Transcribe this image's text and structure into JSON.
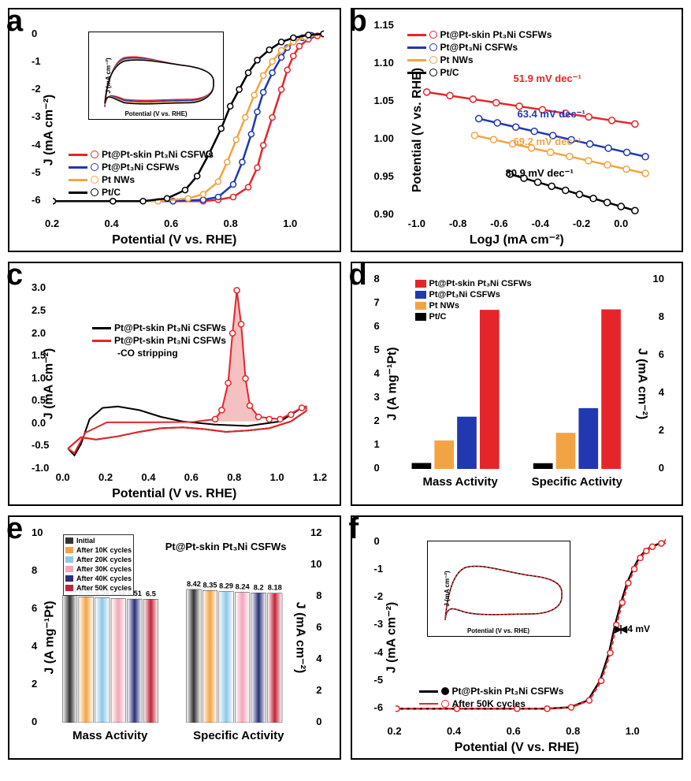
{
  "colors": {
    "red": "#e6252a",
    "blue": "#2138b0",
    "orange": "#f2a444",
    "black": "#000000",
    "pink_fill": "#f5c0c0",
    "lightblue": "#8fc7e8",
    "pink": "#f2a6b8",
    "darkblue": "#2a2f75",
    "darkred": "#c0243a",
    "gray": "#999999"
  },
  "samples": {
    "s1": "Pt@Pt-skin Pt₃Ni CSFWs",
    "s2": "Pt@Pt₃Ni CSFWs",
    "s3": "Pt NWs",
    "s4": "Pt/C"
  },
  "panelA": {
    "label": "a",
    "xlabel": "Potential (V vs. RHE)",
    "ylabel": "J (mA cm⁻²)",
    "xlim": [
      0.2,
      1.1
    ],
    "xticks": [
      0.2,
      0.4,
      0.6,
      0.8,
      1.0
    ],
    "ylim": [
      -6.5,
      0.3
    ],
    "yticks": [
      -6,
      -5,
      -4,
      -3,
      -2,
      -1,
      0
    ],
    "series": [
      {
        "color": "#e6252a",
        "marker": true,
        "data": [
          [
            0.2,
            -6.0
          ],
          [
            0.4,
            -6.0
          ],
          [
            0.6,
            -6.0
          ],
          [
            0.7,
            -6.0
          ],
          [
            0.75,
            -5.95
          ],
          [
            0.8,
            -5.85
          ],
          [
            0.85,
            -5.5
          ],
          [
            0.88,
            -4.8
          ],
          [
            0.9,
            -4.0
          ],
          [
            0.93,
            -3.0
          ],
          [
            0.96,
            -2.0
          ],
          [
            0.98,
            -1.3
          ],
          [
            1.0,
            -0.8
          ],
          [
            1.02,
            -0.45
          ],
          [
            1.05,
            -0.2
          ],
          [
            1.08,
            -0.08
          ],
          [
            1.1,
            -0.02
          ]
        ]
      },
      {
        "color": "#2138b0",
        "marker": true,
        "data": [
          [
            0.2,
            -6.0
          ],
          [
            0.4,
            -6.0
          ],
          [
            0.6,
            -6.0
          ],
          [
            0.7,
            -5.95
          ],
          [
            0.75,
            -5.85
          ],
          [
            0.8,
            -5.4
          ],
          [
            0.83,
            -4.6
          ],
          [
            0.86,
            -3.6
          ],
          [
            0.88,
            -2.8
          ],
          [
            0.9,
            -2.1
          ],
          [
            0.93,
            -1.4
          ],
          [
            0.96,
            -0.85
          ],
          [
            0.98,
            -0.5
          ],
          [
            1.0,
            -0.3
          ],
          [
            1.03,
            -0.15
          ],
          [
            1.06,
            -0.06
          ],
          [
            1.1,
            -0.01
          ]
        ]
      },
      {
        "color": "#f2a444",
        "marker": true,
        "data": [
          [
            0.2,
            -6.0
          ],
          [
            0.4,
            -6.0
          ],
          [
            0.55,
            -6.0
          ],
          [
            0.65,
            -5.9
          ],
          [
            0.7,
            -5.75
          ],
          [
            0.75,
            -5.3
          ],
          [
            0.78,
            -4.6
          ],
          [
            0.81,
            -3.8
          ],
          [
            0.84,
            -3.0
          ],
          [
            0.87,
            -2.2
          ],
          [
            0.9,
            -1.5
          ],
          [
            0.93,
            -1.0
          ],
          [
            0.96,
            -0.6
          ],
          [
            1.0,
            -0.3
          ],
          [
            1.04,
            -0.12
          ],
          [
            1.1,
            -0.02
          ]
        ]
      },
      {
        "color": "#000000",
        "marker": true,
        "data": [
          [
            0.2,
            -6.0
          ],
          [
            0.4,
            -6.0
          ],
          [
            0.5,
            -6.0
          ],
          [
            0.58,
            -5.9
          ],
          [
            0.64,
            -5.6
          ],
          [
            0.68,
            -5.1
          ],
          [
            0.72,
            -4.3
          ],
          [
            0.76,
            -3.4
          ],
          [
            0.79,
            -2.6
          ],
          [
            0.82,
            -2.0
          ],
          [
            0.85,
            -1.4
          ],
          [
            0.88,
            -0.95
          ],
          [
            0.92,
            -0.58
          ],
          [
            0.96,
            -0.3
          ],
          [
            1.0,
            -0.15
          ],
          [
            1.05,
            -0.05
          ],
          [
            1.1,
            -0.01
          ]
        ]
      }
    ],
    "inset": {
      "xlabel": "Potential (V vs. RHE)",
      "ylabel": "J (mA cm⁻²)",
      "xlim": [
        0,
        1.2
      ],
      "ylim": [
        -0.7,
        0.6
      ],
      "xticks": [
        0,
        0.2,
        0.4,
        0.6,
        0.8,
        1.0,
        1.2
      ],
      "yticks": [
        -0.4,
        0,
        0.4
      ]
    }
  },
  "panelB": {
    "label": "b",
    "xlabel": "LogJ (mA cm⁻²)",
    "ylabel": "Potential (V vs. RHE)",
    "xlim": [
      -1.1,
      0.2
    ],
    "xticks": [
      -1.0,
      -0.8,
      -0.6,
      -0.4,
      -0.2,
      0
    ],
    "ylim": [
      0.9,
      1.15
    ],
    "yticks": [
      0.9,
      0.95,
      1.0,
      1.05,
      1.1,
      1.15
    ],
    "tafel": {
      "s1": "51.9 mV dec⁻¹",
      "s2": "63.4 mV dec⁻¹",
      "s3": "69.2 mV dec⁻¹",
      "s4": "80.9 mV dec⁻¹"
    }
  },
  "panelC": {
    "label": "c",
    "xlabel": "Potential (V vs. RHE)",
    "ylabel": "J (mA cm⁻²)",
    "xlim": [
      -0.05,
      1.2
    ],
    "xticks": [
      0.0,
      0.2,
      0.4,
      0.6,
      0.8,
      1.0,
      1.2
    ],
    "ylim": [
      -1.0,
      3.2
    ],
    "yticks": [
      -1.0,
      -0.5,
      0.0,
      0.5,
      1.0,
      1.5,
      2.0,
      2.5,
      3.0
    ],
    "legend": {
      "line1": "Pt@Pt-skin Pt₃Ni CSFWs",
      "line2": "Pt@Pt-skin Pt₃Ni CSFWs",
      "line3": "-CO stripping"
    }
  },
  "panelD": {
    "label": "d",
    "ylabel": "J (A mg⁻¹Pt)",
    "ylabel2": "J (mA cm⁻²)",
    "ylim": [
      0,
      8
    ],
    "yticks": [
      0,
      1,
      2,
      3,
      4,
      5,
      6,
      7,
      8
    ],
    "y2lim": [
      0,
      10
    ],
    "y2ticks": [
      0,
      2,
      4,
      6,
      8,
      10
    ],
    "groups": [
      "Mass Activity",
      "Specific Activity"
    ],
    "bars": {
      "mass": [
        {
          "label": "Pt/C",
          "value": 0.25,
          "color": "#000000"
        },
        {
          "label": "Pt NWs",
          "value": 1.2,
          "color": "#f2a444"
        },
        {
          "label": "Pt@Pt₃Ni CSFWs",
          "value": 2.2,
          "color": "#2138b0"
        },
        {
          "label": "Pt@Pt-skin Pt₃Ni CSFWs",
          "value": 6.7,
          "color": "#e6252a"
        }
      ],
      "specific": [
        {
          "value": 0.3
        },
        {
          "value": 1.9
        },
        {
          "value": 3.2
        },
        {
          "value": 8.4
        }
      ]
    }
  },
  "panelE": {
    "label": "e",
    "ylabel": "J (A mg⁻¹Pt)",
    "ylabel2": "J (mA cm⁻²)",
    "title": "Pt@Pt-skin Pt₃Ni CSFWs",
    "groups": [
      "Mass Activity",
      "Specific Activity"
    ],
    "ylim": [
      0,
      10
    ],
    "yticks": [
      0,
      2,
      4,
      6,
      8,
      10
    ],
    "y2lim": [
      0,
      12
    ],
    "y2ticks": [
      0,
      2,
      4,
      6,
      8,
      10,
      12
    ],
    "cycles": [
      {
        "label": "Initial",
        "color": "#333333"
      },
      {
        "label": "After 10K cycles",
        "color": "#f2a444"
      },
      {
        "label": "After 20K cycles",
        "color": "#8fc7e8"
      },
      {
        "label": "After 30K cycles",
        "color": "#f2a6b8"
      },
      {
        "label": "After 40K cycles",
        "color": "#2a2f75"
      },
      {
        "label": "After 50K cycles",
        "color": "#c0243a"
      }
    ],
    "mass_values": [
      6.69,
      6.63,
      6.58,
      6.54,
      6.51,
      6.5
    ],
    "specific_values": [
      8.42,
      8.35,
      8.29,
      8.24,
      8.2,
      8.18
    ]
  },
  "panelF": {
    "label": "f",
    "xlabel": "Potential (V vs. RHE)",
    "ylabel": "J (mA cm⁻²)",
    "xlim": [
      0.2,
      1.1
    ],
    "xticks": [
      0.2,
      0.4,
      0.6,
      0.8,
      1.0
    ],
    "ylim": [
      -6.5,
      0.3
    ],
    "yticks": [
      -6,
      -5,
      -4,
      -3,
      -2,
      -1,
      0
    ],
    "annotation": "4 mV",
    "legend": {
      "l1": "Pt@Pt-skin Pt₃Ni CSFWs",
      "l2": "After 50K cycles"
    },
    "inset": {
      "xlabel": "Potential (V vs. RHE)",
      "ylabel": "J (mA cm⁻²)",
      "xlim": [
        0,
        1.2
      ],
      "ylim": [
        -0.7,
        0.6
      ],
      "xticks": [
        0,
        0.2,
        0.4,
        0.6,
        0.8,
        1.0,
        1.2
      ],
      "yticks": [
        -0.4,
        0,
        0.4
      ]
    }
  }
}
